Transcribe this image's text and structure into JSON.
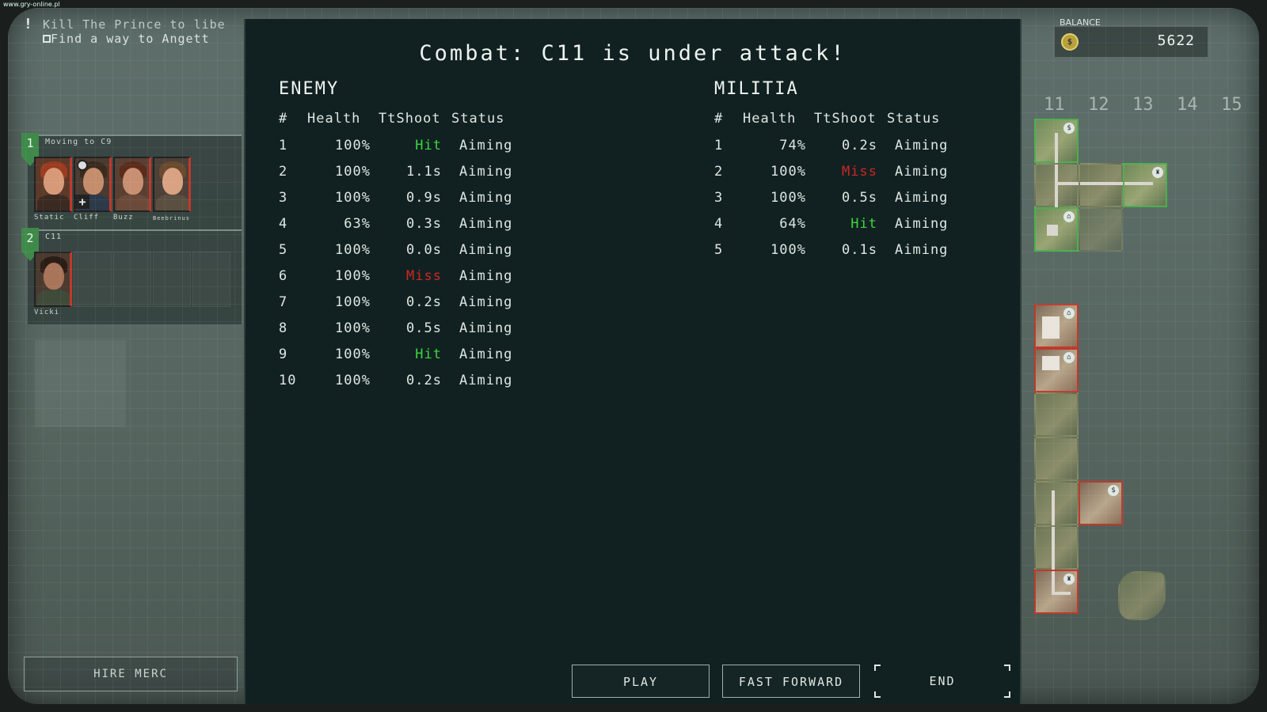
{
  "watermark": "www.gry-online.pl",
  "objectives": {
    "alert": "!",
    "line1": "Kill The Prince to libe",
    "line2": "Find a way to Angett"
  },
  "squads": [
    {
      "number": "1",
      "title": "Moving to C9",
      "mercs": [
        "Static",
        "Cliff",
        "Buzz",
        "Beebrinus"
      ]
    },
    {
      "number": "2",
      "title": "C11",
      "mercs": [
        "Vicki"
      ]
    }
  ],
  "hire_merc": "HIRE MERC",
  "balance": {
    "label": "BALANCE",
    "currency_icon": "$",
    "value": "5622"
  },
  "map_columns": [
    "11",
    "12",
    "13",
    "14",
    "15"
  ],
  "map_icons": {
    "money": "$",
    "tower": "♜",
    "home": "⌂"
  },
  "combat": {
    "title": "Combat: C11 is under attack!",
    "headers": {
      "num": "#",
      "health": "Health",
      "ttshoot": "TtShoot",
      "status": "Status"
    },
    "enemy": {
      "title": "ENEMY",
      "rows": [
        {
          "num": "1",
          "health": "100%",
          "ttshoot": "Hit",
          "status": "Aiming"
        },
        {
          "num": "2",
          "health": "100%",
          "ttshoot": "1.1s",
          "status": "Aiming"
        },
        {
          "num": "3",
          "health": "100%",
          "ttshoot": "0.9s",
          "status": "Aiming"
        },
        {
          "num": "4",
          "health": "63%",
          "ttshoot": "0.3s",
          "status": "Aiming"
        },
        {
          "num": "5",
          "health": "100%",
          "ttshoot": "0.0s",
          "status": "Aiming"
        },
        {
          "num": "6",
          "health": "100%",
          "ttshoot": "Miss",
          "status": "Aiming"
        },
        {
          "num": "7",
          "health": "100%",
          "ttshoot": "0.2s",
          "status": "Aiming"
        },
        {
          "num": "8",
          "health": "100%",
          "ttshoot": "0.5s",
          "status": "Aiming"
        },
        {
          "num": "9",
          "health": "100%",
          "ttshoot": "Hit",
          "status": "Aiming"
        },
        {
          "num": "10",
          "health": "100%",
          "ttshoot": "0.2s",
          "status": "Aiming"
        }
      ]
    },
    "militia": {
      "title": "MILITIA",
      "rows": [
        {
          "num": "1",
          "health": "74%",
          "ttshoot": "0.2s",
          "status": "Aiming"
        },
        {
          "num": "2",
          "health": "100%",
          "ttshoot": "Miss",
          "status": "Aiming"
        },
        {
          "num": "3",
          "health": "100%",
          "ttshoot": "0.5s",
          "status": "Aiming"
        },
        {
          "num": "4",
          "health": "64%",
          "ttshoot": "Hit",
          "status": "Aiming"
        },
        {
          "num": "5",
          "health": "100%",
          "ttshoot": "0.1s",
          "status": "Aiming"
        }
      ]
    },
    "buttons": {
      "play": "PLAY",
      "fast_forward": "FAST FORWARD",
      "end": "END"
    }
  },
  "colors": {
    "hit": "#3dd63d",
    "miss": "#d02525",
    "panel": "#112121",
    "squad_badge": "#3f8a4a"
  }
}
